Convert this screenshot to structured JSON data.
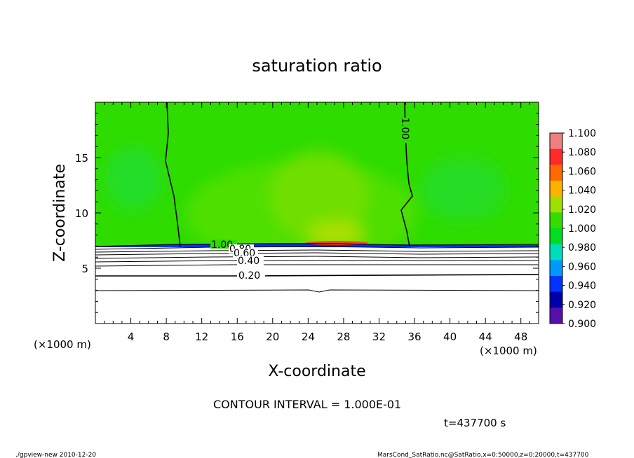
{
  "chart_data": {
    "type": "heatmap",
    "title": "saturation ratio",
    "xlabel": "X-coordinate",
    "ylabel": "Z-coordinate",
    "x_unit": "(×1000 m)",
    "z_unit": "(×1000 m)",
    "xlim": [
      0,
      50
    ],
    "zlim": [
      0,
      20
    ],
    "x_ticks": [
      "4",
      "8",
      "12",
      "16",
      "20",
      "24",
      "28",
      "32",
      "36",
      "40",
      "44",
      "48"
    ],
    "z_ticks": [
      "5",
      "10",
      "15"
    ],
    "colorbar": {
      "levels": [
        "1.100",
        "1.080",
        "1.060",
        "1.040",
        "1.020",
        "1.000",
        "0.980",
        "0.960",
        "0.940",
        "0.920",
        "0.900"
      ],
      "colors": [
        "#f08080",
        "#ff2a2a",
        "#ff6a00",
        "#ffb300",
        "#9ee000",
        "#33dd00",
        "#00dd22",
        "#00ddbb",
        "#0099ff",
        "#0033ff",
        "#0000aa",
        "#5511aa"
      ]
    },
    "contour_interval": "CONTOUR INTERVAL = 1.000E-01",
    "contour_labels": [
      "1.00",
      "1.00",
      "0.80",
      "0.60",
      "0.40",
      "0.20"
    ],
    "surface_height_km": 7,
    "time": "t=437700 s"
  },
  "footer": {
    "left": "./gpview-new  2010-12-20",
    "right": "MarsCond_SatRatio.nc@SatRatio,x=0:50000,z=0:20000,t=437700"
  }
}
